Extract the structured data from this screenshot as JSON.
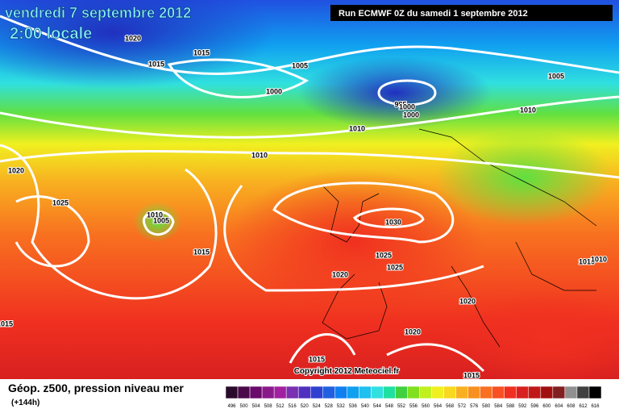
{
  "header": {
    "date": "vendredi 7 septembre 2012",
    "time": "2:00 locale",
    "run": "Run ECMWF 0Z du samedi 1 septembre 2012"
  },
  "isobar_labels": [
    "1020",
    "1015",
    "1015",
    "1005",
    "1000",
    "995",
    "1000",
    "1000",
    "1005",
    "1010",
    "1010",
    "1010",
    "1020",
    "1025",
    "1010",
    "1005",
    "1030",
    "1015",
    "1025",
    "1025",
    "1020",
    "1020",
    "1010",
    "1010",
    "1015",
    "1020",
    "1015",
    "1015"
  ],
  "copyright": "Copyright 2012 Meteociel.fr",
  "legend": {
    "title": "Géop. z500, pression niveau mer",
    "lead": "(+144h)",
    "labels": [
      "496",
      "500",
      "504",
      "508",
      "512",
      "516",
      "520",
      "524",
      "528",
      "532",
      "536",
      "540",
      "544",
      "548",
      "552",
      "556",
      "560",
      "564",
      "568",
      "572",
      "576",
      "580",
      "584",
      "588",
      "592",
      "596",
      "600",
      "604",
      "608",
      "612",
      "616"
    ],
    "colors": [
      "#2a0a2a",
      "#4a0a4a",
      "#6a0a6a",
      "#8a1a8a",
      "#a020a0",
      "#7a30b0",
      "#5030c0",
      "#3040d0",
      "#2060e0",
      "#1080f0",
      "#10a0f0",
      "#20c0f0",
      "#30e0e0",
      "#20e0a0",
      "#40d040",
      "#80e020",
      "#c0f020",
      "#f0f020",
      "#f8d820",
      "#f8b020",
      "#f89020",
      "#f87020",
      "#f85020",
      "#f03020",
      "#d82020",
      "#c01818",
      "#a01010",
      "#802020",
      "#909090",
      "#404040",
      "#000000"
    ]
  }
}
